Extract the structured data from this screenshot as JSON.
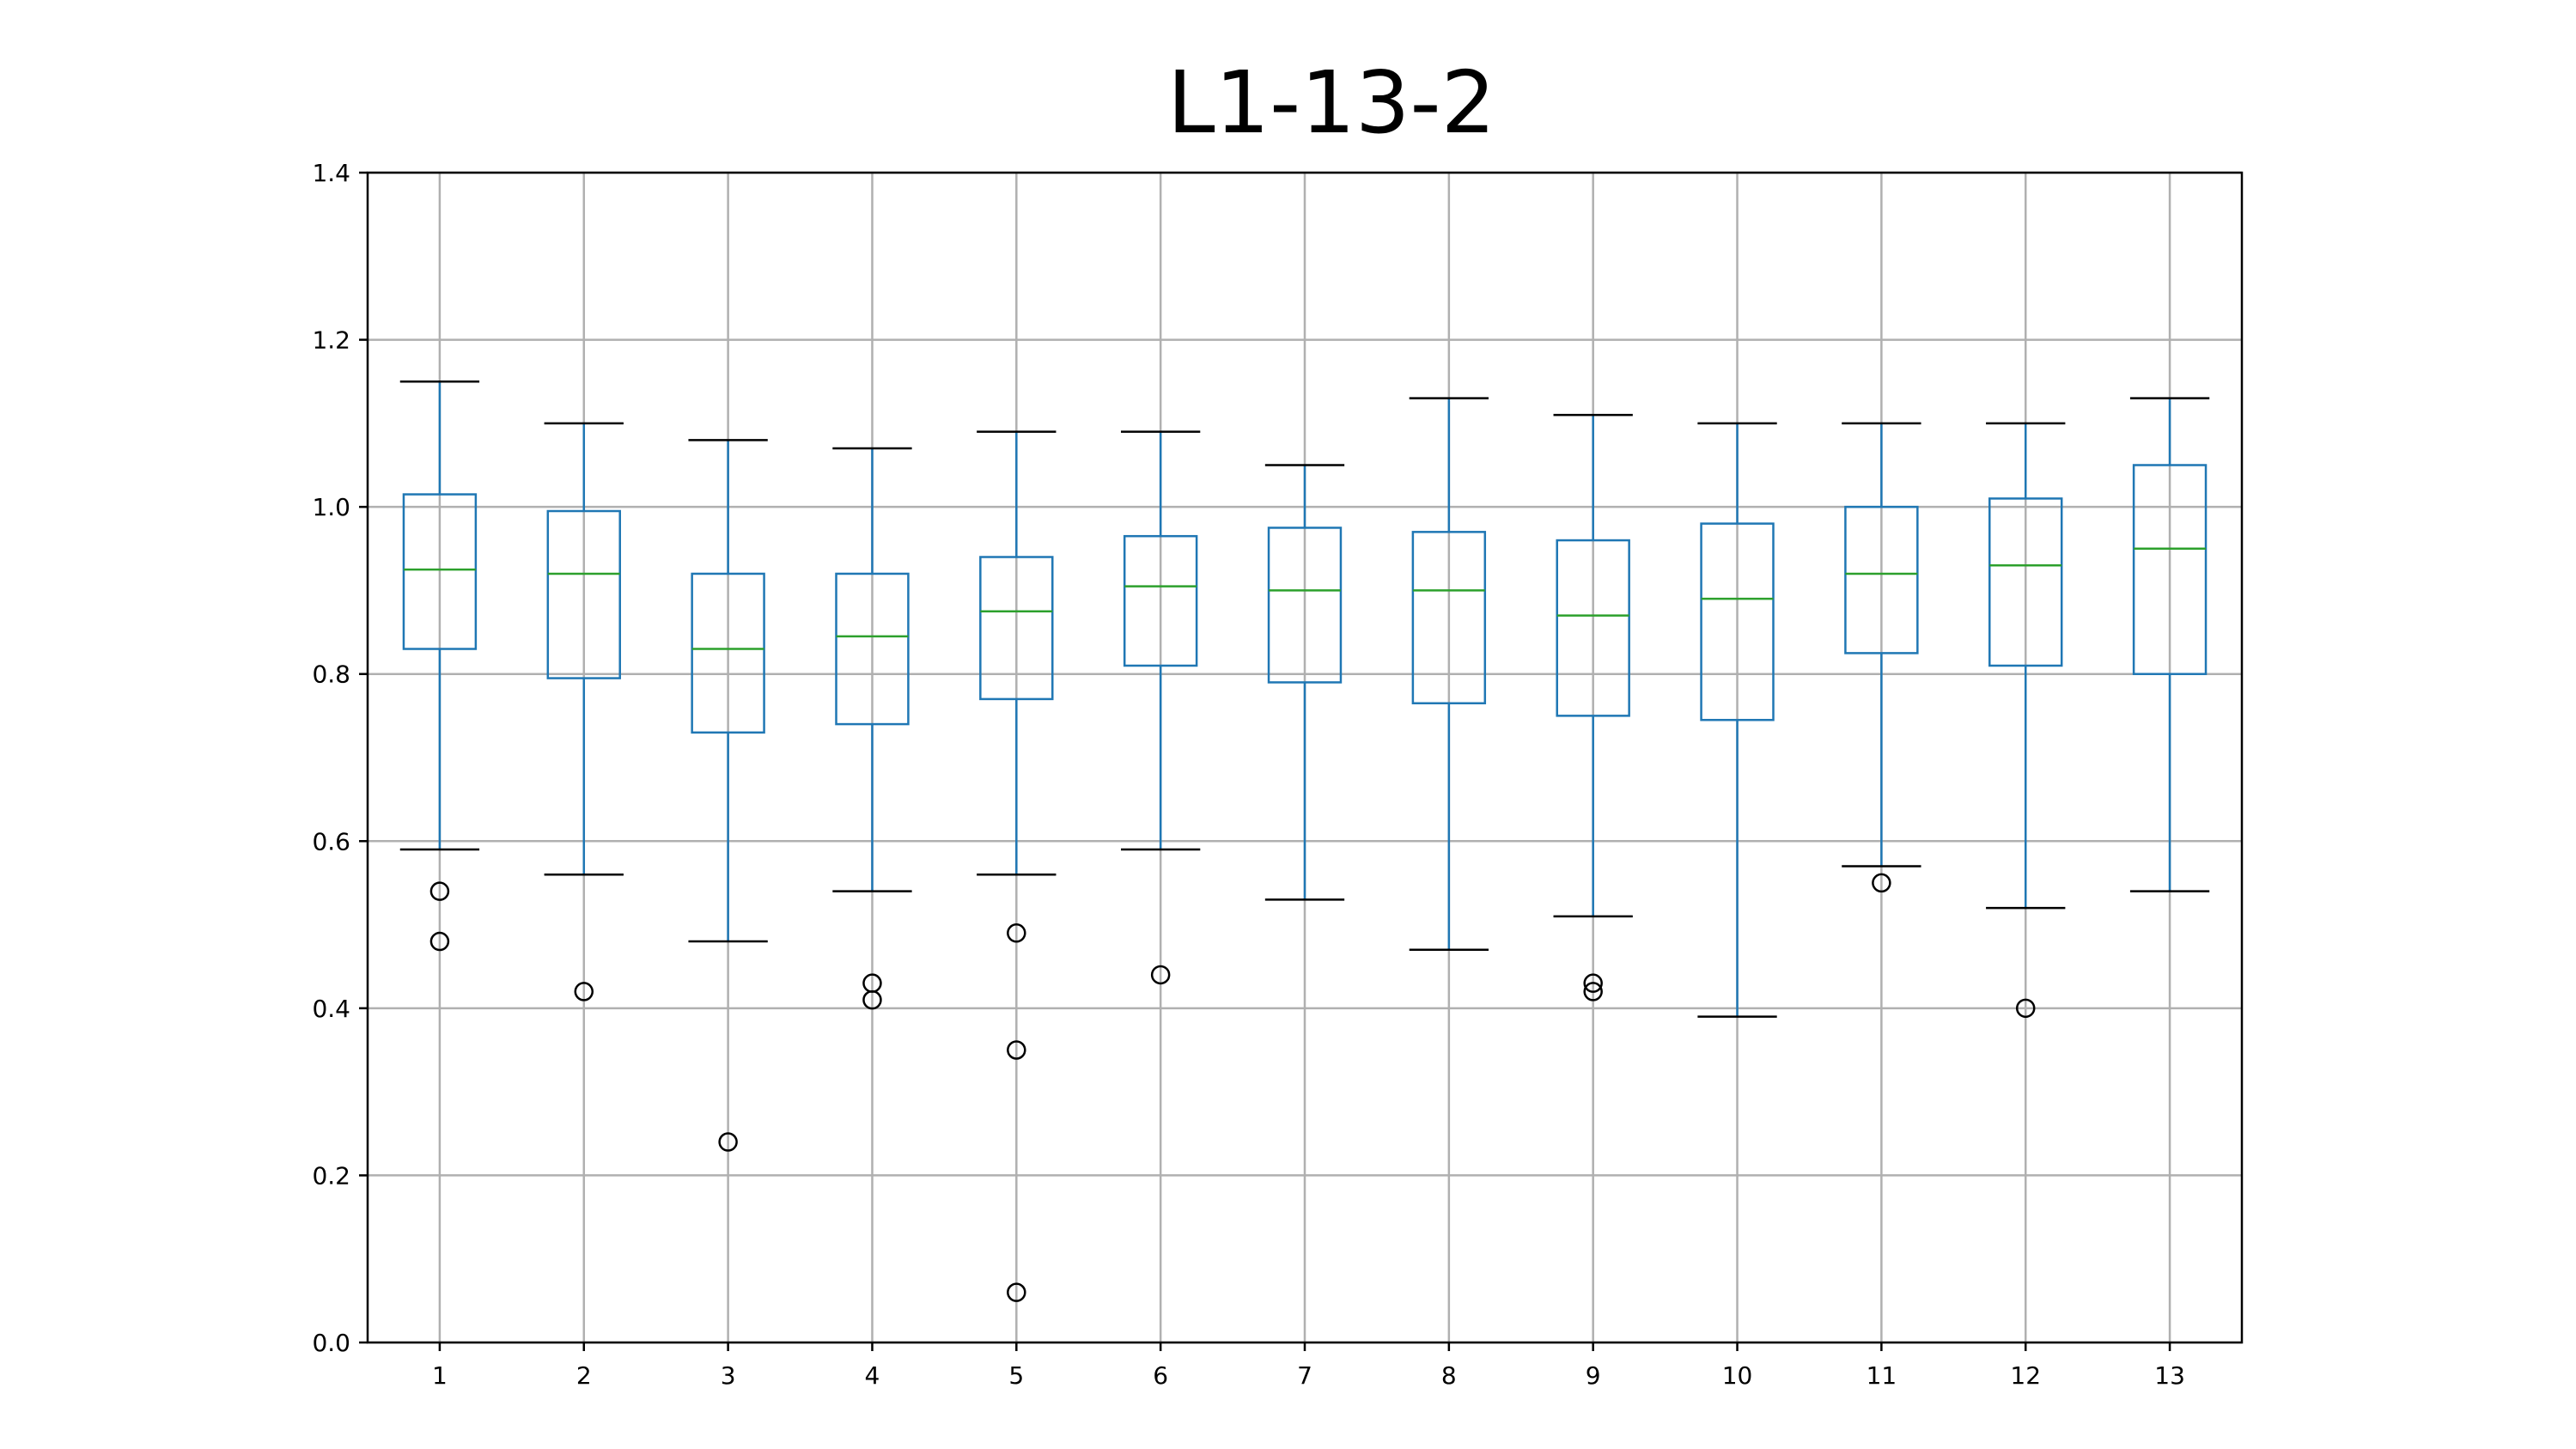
{
  "chart_data": {
    "type": "boxplot",
    "title": "L1-13-2",
    "xlabel": "",
    "ylabel": "",
    "ylim": [
      0.0,
      1.4
    ],
    "yticks": [
      0.0,
      0.2,
      0.4,
      0.6,
      0.8,
      1.0,
      1.2,
      1.4
    ],
    "ytick_labels": [
      "0.0",
      "0.2",
      "0.4",
      "0.6",
      "0.8",
      "1.0",
      "1.2",
      "1.4"
    ],
    "grid": true,
    "colors": {
      "box": "#1f77b4",
      "median": "#2ca02c",
      "cap": "#000000",
      "flier": "#000000",
      "grid": "#b0b0b0",
      "axes": "#000000"
    },
    "categories": [
      "1",
      "2",
      "3",
      "4",
      "5",
      "6",
      "7",
      "8",
      "9",
      "10",
      "11",
      "12",
      "13"
    ],
    "boxes": [
      {
        "category": "1",
        "whisker_low": 0.59,
        "q1": 0.83,
        "median": 0.925,
        "q3": 1.015,
        "whisker_high": 1.15,
        "fliers": [
          0.54,
          0.48
        ]
      },
      {
        "category": "2",
        "whisker_low": 0.56,
        "q1": 0.795,
        "median": 0.92,
        "q3": 0.995,
        "whisker_high": 1.1,
        "fliers": [
          0.42
        ]
      },
      {
        "category": "3",
        "whisker_low": 0.48,
        "q1": 0.73,
        "median": 0.83,
        "q3": 0.92,
        "whisker_high": 1.08,
        "fliers": [
          0.24
        ]
      },
      {
        "category": "4",
        "whisker_low": 0.54,
        "q1": 0.74,
        "median": 0.845,
        "q3": 0.92,
        "whisker_high": 1.07,
        "fliers": [
          0.43,
          0.41
        ]
      },
      {
        "category": "5",
        "whisker_low": 0.56,
        "q1": 0.77,
        "median": 0.875,
        "q3": 0.94,
        "whisker_high": 1.09,
        "fliers": [
          0.49,
          0.35,
          0.06
        ]
      },
      {
        "category": "6",
        "whisker_low": 0.59,
        "q1": 0.81,
        "median": 0.905,
        "q3": 0.965,
        "whisker_high": 1.09,
        "fliers": [
          0.44
        ]
      },
      {
        "category": "7",
        "whisker_low": 0.53,
        "q1": 0.79,
        "median": 0.9,
        "q3": 0.975,
        "whisker_high": 1.05,
        "fliers": []
      },
      {
        "category": "8",
        "whisker_low": 0.47,
        "q1": 0.765,
        "median": 0.9,
        "q3": 0.97,
        "whisker_high": 1.13,
        "fliers": []
      },
      {
        "category": "9",
        "whisker_low": 0.51,
        "q1": 0.75,
        "median": 0.87,
        "q3": 0.96,
        "whisker_high": 1.11,
        "fliers": [
          0.43,
          0.42
        ]
      },
      {
        "category": "10",
        "whisker_low": 0.39,
        "q1": 0.745,
        "median": 0.89,
        "q3": 0.98,
        "whisker_high": 1.1,
        "fliers": []
      },
      {
        "category": "11",
        "whisker_low": 0.57,
        "q1": 0.825,
        "median": 0.92,
        "q3": 1.0,
        "whisker_high": 1.1,
        "fliers": [
          0.55
        ]
      },
      {
        "category": "12",
        "whisker_low": 0.52,
        "q1": 0.81,
        "median": 0.93,
        "q3": 1.01,
        "whisker_high": 1.1,
        "fliers": [
          0.4
        ]
      },
      {
        "category": "13",
        "whisker_low": 0.54,
        "q1": 0.8,
        "median": 0.95,
        "q3": 1.05,
        "whisker_high": 1.13,
        "fliers": []
      }
    ]
  }
}
